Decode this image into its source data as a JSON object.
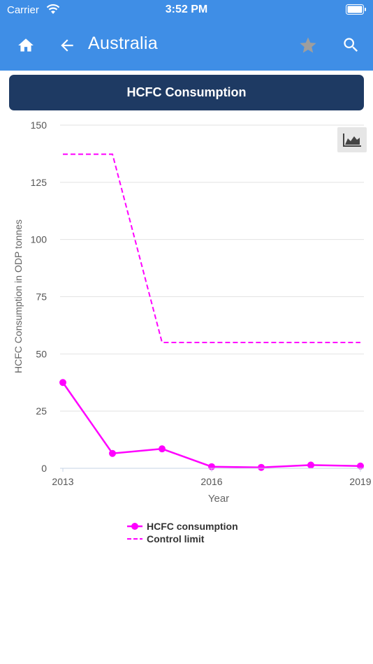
{
  "status_bar": {
    "carrier": "Carrier",
    "time": "3:52 PM"
  },
  "app_bar": {
    "title": "Australia",
    "icons": [
      "home-icon",
      "back-arrow-icon",
      "star-icon",
      "search-icon"
    ]
  },
  "header": {
    "title": "HCFC Consumption"
  },
  "colors": {
    "app_bar": "#3f8ee6",
    "header_card": "#1e3a63",
    "series": "#ff00ff",
    "star_inactive": "#9e9e9e"
  },
  "chart_data": {
    "type": "line",
    "xlabel": "Year",
    "ylabel": "HCFC Consumption in ODP tonnes",
    "xlim": [
      2013,
      2019
    ],
    "ylim": [
      0,
      150
    ],
    "x_ticks": [
      "2013",
      "2016",
      "2019"
    ],
    "y_ticks": [
      "0",
      "25",
      "50",
      "75",
      "100",
      "125",
      "150"
    ],
    "grid": true,
    "legend_position": "bottom",
    "series": [
      {
        "name": "HCFC consumption",
        "style": "solid-markers",
        "x": [
          2013,
          2014,
          2015,
          2016,
          2017,
          2018,
          2019
        ],
        "y": [
          37.5,
          6.5,
          8.5,
          0.7,
          0.4,
          1.4,
          1.0
        ]
      },
      {
        "name": "Control limit",
        "style": "dashed-step",
        "x": [
          2013,
          2014,
          2015,
          2016,
          2017,
          2018,
          2019
        ],
        "y": [
          137.3,
          137.3,
          55.0,
          55.0,
          55.0,
          55.0,
          55.0
        ]
      }
    ]
  }
}
